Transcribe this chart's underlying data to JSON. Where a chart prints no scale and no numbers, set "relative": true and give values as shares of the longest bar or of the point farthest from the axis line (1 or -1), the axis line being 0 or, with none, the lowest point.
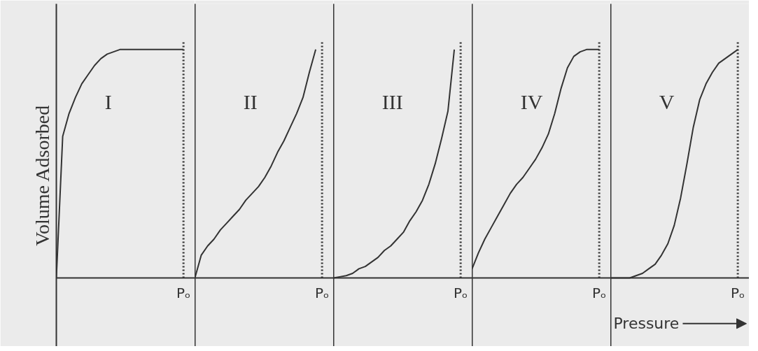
{
  "chart_data": [
    {
      "type": "line",
      "relative": true,
      "annotations": [
        "I",
        "Pₒ"
      ],
      "ylabel": "Volume Adsorbed",
      "color": "#333333",
      "categories": [
        null,
        null,
        null,
        null,
        null,
        null,
        null,
        null,
        null,
        null,
        null,
        null,
        null,
        null,
        null,
        null,
        null,
        null,
        null,
        null,
        null
      ],
      "values": [
        0,
        0.62,
        0.72,
        0.79,
        0.85,
        0.89,
        0.93,
        0.96,
        0.98,
        0.99,
        1.0,
        1.0,
        1.0,
        1.0,
        1.0,
        1.0,
        1.0,
        1.0,
        1.0,
        1.0,
        1.0
      ]
    },
    {
      "type": "line",
      "relative": true,
      "annotations": [
        "II",
        "Pₒ"
      ],
      "color": "#333333",
      "categories": [
        null,
        null,
        null,
        null,
        null,
        null,
        null,
        null,
        null,
        null,
        null,
        null,
        null,
        null,
        null,
        null,
        null,
        null,
        null,
        null,
        null
      ],
      "values": [
        0,
        0.1,
        0.14,
        0.17,
        0.21,
        0.24,
        0.27,
        0.3,
        0.34,
        0.37,
        0.4,
        0.44,
        0.49,
        0.55,
        0.6,
        0.66,
        0.72,
        0.79,
        0.9,
        1.0,
        null
      ]
    },
    {
      "type": "line",
      "relative": true,
      "annotations": [
        "III",
        "Pₒ"
      ],
      "color": "#333333",
      "categories": [
        null,
        null,
        null,
        null,
        null,
        null,
        null,
        null,
        null,
        null,
        null,
        null,
        null,
        null,
        null,
        null,
        null,
        null,
        null,
        null,
        null
      ],
      "values": [
        0,
        0.005,
        0.01,
        0.02,
        0.04,
        0.05,
        0.07,
        0.09,
        0.12,
        0.14,
        0.17,
        0.2,
        0.25,
        0.29,
        0.34,
        0.41,
        0.5,
        0.61,
        0.73,
        1.0,
        null
      ]
    },
    {
      "type": "line",
      "relative": true,
      "annotations": [
        "IV",
        "Pₒ"
      ],
      "color": "#333333",
      "categories": [
        null,
        null,
        null,
        null,
        null,
        null,
        null,
        null,
        null,
        null,
        null,
        null,
        null,
        null,
        null,
        null,
        null,
        null,
        null,
        null,
        null
      ],
      "values": [
        0.04,
        0.11,
        0.17,
        0.22,
        0.27,
        0.32,
        0.37,
        0.41,
        0.44,
        0.48,
        0.52,
        0.57,
        0.63,
        0.72,
        0.83,
        0.92,
        0.97,
        0.99,
        1.0,
        1.0,
        1.0
      ]
    },
    {
      "type": "line",
      "relative": true,
      "annotations": [
        "V",
        "Pₒ"
      ],
      "xlabel": "Pressure",
      "color": "#333333",
      "categories": [
        null,
        null,
        null,
        null,
        null,
        null,
        null,
        null,
        null,
        null,
        null,
        null,
        null,
        null,
        null,
        null,
        null,
        null,
        null,
        null,
        null
      ],
      "values": [
        0,
        0,
        0,
        0,
        0.01,
        0.02,
        0.04,
        0.06,
        0.1,
        0.15,
        0.23,
        0.35,
        0.5,
        0.66,
        0.78,
        0.85,
        0.9,
        0.94,
        0.96,
        0.98,
        1.0
      ]
    }
  ]
}
